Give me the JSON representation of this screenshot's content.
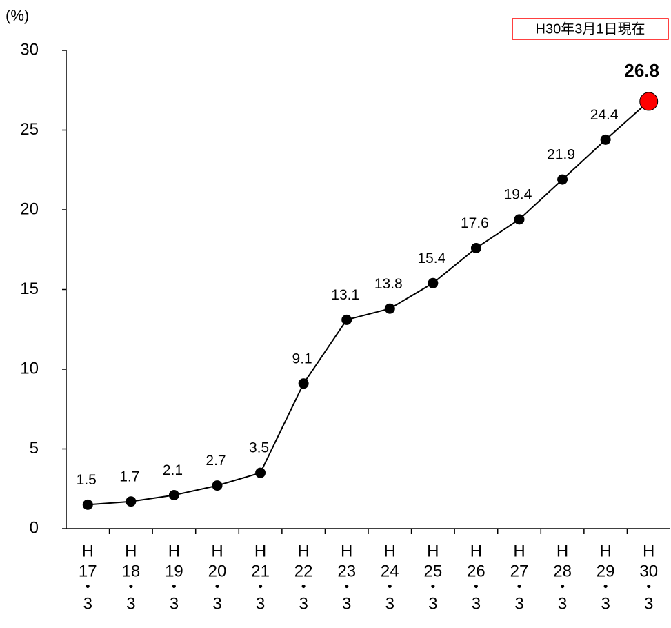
{
  "chart_data": {
    "type": "line",
    "y_unit_label": "(%)",
    "annotation": "H30年3月1日現在",
    "categories": [
      [
        "H",
        "17",
        "・",
        "3"
      ],
      [
        "H",
        "18",
        "・",
        "3"
      ],
      [
        "H",
        "19",
        "・",
        "3"
      ],
      [
        "H",
        "20",
        "・",
        "3"
      ],
      [
        "H",
        "21",
        "・",
        "3"
      ],
      [
        "H",
        "22",
        "・",
        "3"
      ],
      [
        "H",
        "23",
        "・",
        "3"
      ],
      [
        "H",
        "24",
        "・",
        "3"
      ],
      [
        "H",
        "25",
        "・",
        "3"
      ],
      [
        "H",
        "26",
        "・",
        "3"
      ],
      [
        "H",
        "27",
        "・",
        "3"
      ],
      [
        "H",
        "28",
        "・",
        "3"
      ],
      [
        "H",
        "29",
        "・",
        "3"
      ],
      [
        "H",
        "30",
        "・",
        "3"
      ]
    ],
    "series": [
      {
        "color": "#000000",
        "values": [
          1.5,
          1.7,
          2.1,
          2.7,
          3.5,
          9.1,
          13.1,
          13.8,
          15.4,
          17.6,
          19.4,
          21.9,
          24.4,
          26.8
        ]
      }
    ],
    "highlight_color": "#ff0000",
    "annotation_color": "#ff0000",
    "ylim": [
      0,
      30
    ],
    "yticks": [
      0,
      5,
      10,
      15,
      20,
      25,
      30
    ],
    "grid": false
  }
}
